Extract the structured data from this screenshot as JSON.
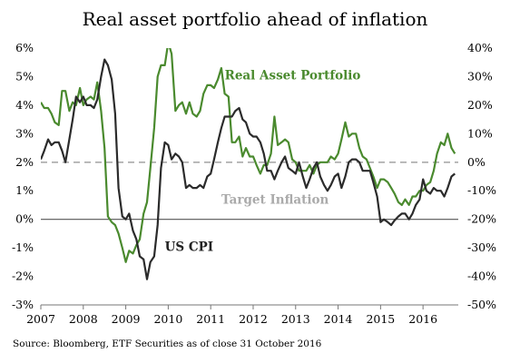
{
  "chart_data": {
    "type": "line",
    "title": "Real asset portfolio ahead of inflation",
    "source": "Source: Bloomberg, ETF Securities as of close 31 October 2016",
    "x_range": [
      2007.0,
      2016.83
    ],
    "x_ticks": [
      "2007",
      "2008",
      "2009",
      "2010",
      "2011",
      "2012",
      "2013",
      "2014",
      "2015",
      "2016"
    ],
    "y_left": {
      "range": [
        -3,
        6
      ],
      "ticks": [
        "6%",
        "5%",
        "4%",
        "3%",
        "2%",
        "1%",
        "0%",
        "-1%",
        "-2%",
        "-3%"
      ]
    },
    "y_right": {
      "range": [
        -50,
        40
      ],
      "ticks": [
        "40%",
        "30%",
        "20%",
        "10%",
        "0%",
        "-10%",
        "-20%",
        "-30%",
        "-40%",
        "-50%"
      ]
    },
    "reference_line": {
      "label": "Target Inflation",
      "value": 2,
      "axis": "left",
      "color": "#aaaaaa",
      "dashed": true
    },
    "zero_line": {
      "value": 0,
      "axis": "left",
      "color": "#555555"
    },
    "series": [
      {
        "name": "US CPI",
        "axis": "left",
        "color": "#2b2b2b",
        "points": [
          [
            2007.0,
            2.1
          ],
          [
            2007.08,
            2.4
          ],
          [
            2007.17,
            2.8
          ],
          [
            2007.25,
            2.6
          ],
          [
            2007.33,
            2.7
          ],
          [
            2007.42,
            2.7
          ],
          [
            2007.5,
            2.4
          ],
          [
            2007.58,
            2.0
          ],
          [
            2007.67,
            2.8
          ],
          [
            2007.75,
            3.5
          ],
          [
            2007.83,
            4.3
          ],
          [
            2007.92,
            4.1
          ],
          [
            2008.0,
            4.3
          ],
          [
            2008.08,
            4.0
          ],
          [
            2008.17,
            4.0
          ],
          [
            2008.25,
            3.9
          ],
          [
            2008.33,
            4.2
          ],
          [
            2008.42,
            5.0
          ],
          [
            2008.5,
            5.6
          ],
          [
            2008.58,
            5.4
          ],
          [
            2008.67,
            4.9
          ],
          [
            2008.75,
            3.7
          ],
          [
            2008.83,
            1.1
          ],
          [
            2008.92,
            0.1
          ],
          [
            2009.0,
            0.0
          ],
          [
            2009.08,
            0.2
          ],
          [
            2009.17,
            -0.4
          ],
          [
            2009.25,
            -0.7
          ],
          [
            2009.33,
            -1.3
          ],
          [
            2009.42,
            -1.4
          ],
          [
            2009.5,
            -2.1
          ],
          [
            2009.58,
            -1.5
          ],
          [
            2009.67,
            -1.3
          ],
          [
            2009.75,
            -0.2
          ],
          [
            2009.83,
            1.8
          ],
          [
            2009.92,
            2.7
          ],
          [
            2010.0,
            2.6
          ],
          [
            2010.08,
            2.1
          ],
          [
            2010.17,
            2.3
          ],
          [
            2010.25,
            2.2
          ],
          [
            2010.33,
            2.0
          ],
          [
            2010.42,
            1.1
          ],
          [
            2010.5,
            1.2
          ],
          [
            2010.58,
            1.1
          ],
          [
            2010.67,
            1.1
          ],
          [
            2010.75,
            1.2
          ],
          [
            2010.83,
            1.1
          ],
          [
            2010.92,
            1.5
          ],
          [
            2011.0,
            1.6
          ],
          [
            2011.08,
            2.1
          ],
          [
            2011.17,
            2.7
          ],
          [
            2011.25,
            3.2
          ],
          [
            2011.33,
            3.6
          ],
          [
            2011.42,
            3.6
          ],
          [
            2011.5,
            3.6
          ],
          [
            2011.58,
            3.8
          ],
          [
            2011.67,
            3.9
          ],
          [
            2011.75,
            3.5
          ],
          [
            2011.83,
            3.4
          ],
          [
            2011.92,
            3.0
          ],
          [
            2012.0,
            2.9
          ],
          [
            2012.08,
            2.9
          ],
          [
            2012.17,
            2.7
          ],
          [
            2012.25,
            2.3
          ],
          [
            2012.33,
            1.7
          ],
          [
            2012.42,
            1.7
          ],
          [
            2012.5,
            1.4
          ],
          [
            2012.58,
            1.7
          ],
          [
            2012.67,
            2.0
          ],
          [
            2012.75,
            2.2
          ],
          [
            2012.83,
            1.8
          ],
          [
            2012.92,
            1.7
          ],
          [
            2013.0,
            1.6
          ],
          [
            2013.08,
            2.0
          ],
          [
            2013.17,
            1.5
          ],
          [
            2013.25,
            1.1
          ],
          [
            2013.33,
            1.4
          ],
          [
            2013.42,
            1.8
          ],
          [
            2013.5,
            2.0
          ],
          [
            2013.58,
            1.5
          ],
          [
            2013.67,
            1.2
          ],
          [
            2013.75,
            1.0
          ],
          [
            2013.83,
            1.2
          ],
          [
            2013.92,
            1.5
          ],
          [
            2014.0,
            1.6
          ],
          [
            2014.08,
            1.1
          ],
          [
            2014.17,
            1.5
          ],
          [
            2014.25,
            2.0
          ],
          [
            2014.33,
            2.1
          ],
          [
            2014.42,
            2.1
          ],
          [
            2014.5,
            2.0
          ],
          [
            2014.58,
            1.7
          ],
          [
            2014.67,
            1.7
          ],
          [
            2014.75,
            1.7
          ],
          [
            2014.83,
            1.3
          ],
          [
            2014.92,
            0.8
          ],
          [
            2015.0,
            -0.1
          ],
          [
            2015.08,
            0.0
          ],
          [
            2015.17,
            -0.1
          ],
          [
            2015.25,
            -0.2
          ],
          [
            2015.33,
            -0.04
          ],
          [
            2015.42,
            0.1
          ],
          [
            2015.5,
            0.2
          ],
          [
            2015.58,
            0.2
          ],
          [
            2015.67,
            0.0
          ],
          [
            2015.75,
            0.2
          ],
          [
            2015.83,
            0.5
          ],
          [
            2015.92,
            0.7
          ],
          [
            2016.0,
            1.4
          ],
          [
            2016.08,
            1.0
          ],
          [
            2016.17,
            0.9
          ],
          [
            2016.25,
            1.1
          ],
          [
            2016.33,
            1.0
          ],
          [
            2016.42,
            1.0
          ],
          [
            2016.5,
            0.8
          ],
          [
            2016.58,
            1.1
          ],
          [
            2016.67,
            1.5
          ],
          [
            2016.75,
            1.6
          ]
        ]
      },
      {
        "name": "Real Asset Portfolio",
        "axis": "right",
        "color": "#4a8a2e",
        "points": [
          [
            2007.0,
            21
          ],
          [
            2007.08,
            19
          ],
          [
            2007.17,
            19
          ],
          [
            2007.25,
            17
          ],
          [
            2007.33,
            14
          ],
          [
            2007.42,
            13
          ],
          [
            2007.5,
            25
          ],
          [
            2007.58,
            25
          ],
          [
            2007.67,
            18
          ],
          [
            2007.75,
            21
          ],
          [
            2007.83,
            20
          ],
          [
            2007.92,
            26
          ],
          [
            2008.0,
            20
          ],
          [
            2008.08,
            22
          ],
          [
            2008.17,
            23
          ],
          [
            2008.25,
            22
          ],
          [
            2008.33,
            28
          ],
          [
            2008.42,
            18
          ],
          [
            2008.5,
            5
          ],
          [
            2008.58,
            -19
          ],
          [
            2008.67,
            -21
          ],
          [
            2008.75,
            -22
          ],
          [
            2008.83,
            -25
          ],
          [
            2008.92,
            -30
          ],
          [
            2009.0,
            -35
          ],
          [
            2009.08,
            -31
          ],
          [
            2009.17,
            -32
          ],
          [
            2009.25,
            -29
          ],
          [
            2009.33,
            -27
          ],
          [
            2009.42,
            -18
          ],
          [
            2009.5,
            -14
          ],
          [
            2009.58,
            -2
          ],
          [
            2009.67,
            12
          ],
          [
            2009.75,
            30
          ],
          [
            2009.83,
            34
          ],
          [
            2009.92,
            34
          ],
          [
            2010.0,
            42
          ],
          [
            2010.08,
            38
          ],
          [
            2010.17,
            18
          ],
          [
            2010.25,
            20
          ],
          [
            2010.33,
            21
          ],
          [
            2010.42,
            17
          ],
          [
            2010.5,
            21
          ],
          [
            2010.58,
            17
          ],
          [
            2010.67,
            16
          ],
          [
            2010.75,
            18
          ],
          [
            2010.83,
            24
          ],
          [
            2010.92,
            27
          ],
          [
            2011.0,
            27
          ],
          [
            2011.08,
            26
          ],
          [
            2011.17,
            29
          ],
          [
            2011.25,
            33
          ],
          [
            2011.33,
            24
          ],
          [
            2011.42,
            23
          ],
          [
            2011.5,
            7
          ],
          [
            2011.58,
            7
          ],
          [
            2011.67,
            9
          ],
          [
            2011.75,
            2
          ],
          [
            2011.83,
            5
          ],
          [
            2011.92,
            2
          ],
          [
            2012.0,
            2
          ],
          [
            2012.08,
            -1
          ],
          [
            2012.17,
            -4
          ],
          [
            2012.25,
            -1
          ],
          [
            2012.33,
            -1
          ],
          [
            2012.42,
            3
          ],
          [
            2012.5,
            16
          ],
          [
            2012.58,
            6
          ],
          [
            2012.67,
            7
          ],
          [
            2012.75,
            8
          ],
          [
            2012.83,
            7
          ],
          [
            2012.92,
            1
          ],
          [
            2013.0,
            0
          ],
          [
            2013.08,
            -3
          ],
          [
            2013.17,
            -3
          ],
          [
            2013.25,
            -3
          ],
          [
            2013.33,
            -1
          ],
          [
            2013.42,
            -4
          ],
          [
            2013.5,
            -1
          ],
          [
            2013.58,
            0
          ],
          [
            2013.67,
            0
          ],
          [
            2013.75,
            0
          ],
          [
            2013.83,
            2
          ],
          [
            2013.92,
            1
          ],
          [
            2014.0,
            3
          ],
          [
            2014.08,
            8
          ],
          [
            2014.17,
            14
          ],
          [
            2014.25,
            9
          ],
          [
            2014.33,
            10
          ],
          [
            2014.42,
            10
          ],
          [
            2014.5,
            5
          ],
          [
            2014.58,
            2
          ],
          [
            2014.67,
            1
          ],
          [
            2014.75,
            -2
          ],
          [
            2014.83,
            -5
          ],
          [
            2014.92,
            -9
          ],
          [
            2015.0,
            -6
          ],
          [
            2015.08,
            -6
          ],
          [
            2015.17,
            -7
          ],
          [
            2015.25,
            -9
          ],
          [
            2015.33,
            -11
          ],
          [
            2015.42,
            -14
          ],
          [
            2015.5,
            -15
          ],
          [
            2015.58,
            -13
          ],
          [
            2015.67,
            -15
          ],
          [
            2015.75,
            -12
          ],
          [
            2015.83,
            -12
          ],
          [
            2015.92,
            -10
          ],
          [
            2016.0,
            -10
          ],
          [
            2016.08,
            -8
          ],
          [
            2016.17,
            -7
          ],
          [
            2016.25,
            -3
          ],
          [
            2016.33,
            3
          ],
          [
            2016.42,
            7
          ],
          [
            2016.5,
            6
          ],
          [
            2016.58,
            10
          ],
          [
            2016.67,
            5
          ],
          [
            2016.75,
            3
          ]
        ]
      }
    ],
    "annotations": [
      {
        "text": "Real Asset Portfolio",
        "series": 1,
        "anchor": [
          2011.33,
          29
        ],
        "axis": "right"
      },
      {
        "text": "Target Inflation",
        "anchor": [
          2011.25,
          0.55
        ],
        "axis": "left"
      },
      {
        "text": "US CPI",
        "anchor": [
          2009.92,
          -1.1
        ],
        "axis": "left"
      }
    ],
    "grid": false,
    "legend": "none"
  }
}
